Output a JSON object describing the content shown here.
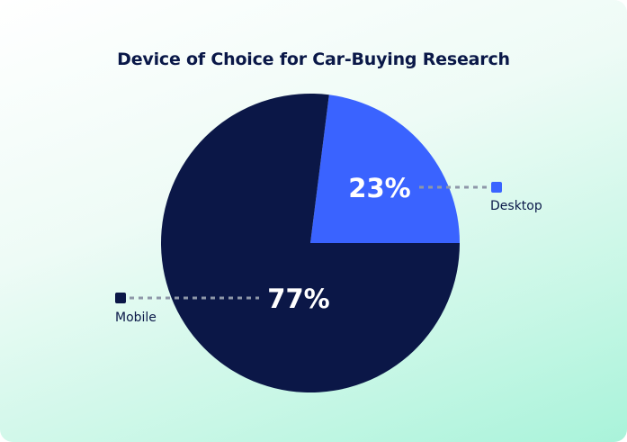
{
  "chart_data": {
    "type": "pie",
    "title": "Device of Choice for Car-Buying Research",
    "slices": [
      {
        "label": "Desktop",
        "value": 23,
        "display": "23%",
        "color": "#3a63ff"
      },
      {
        "label": "Mobile",
        "value": 77,
        "display": "77%",
        "color": "#0b1747"
      }
    ],
    "legend": "callouts"
  },
  "colors": {
    "connector": "#8e97a8"
  }
}
